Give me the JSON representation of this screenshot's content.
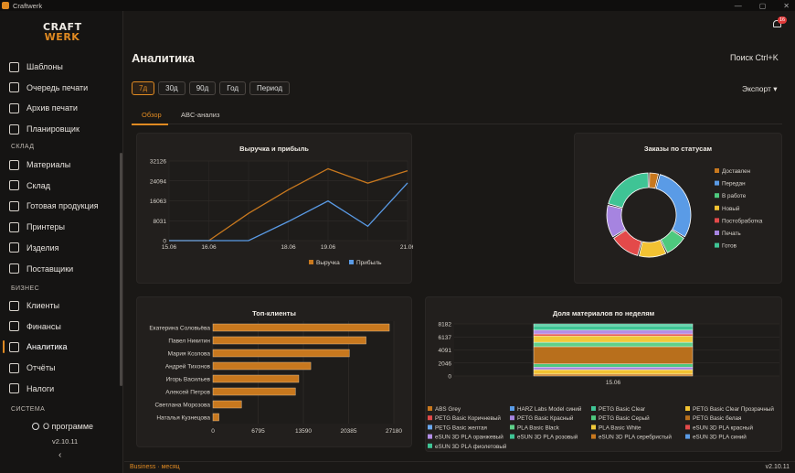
{
  "window": {
    "title": "Craftwerk",
    "controls": [
      "—",
      "▢",
      "✕"
    ]
  },
  "logo": {
    "line1": "CRAFT",
    "line2": "WERK"
  },
  "sidebar": {
    "items_top": [
      {
        "label": "Шаблоны",
        "icon": "layers-icon"
      },
      {
        "label": "Очередь печати",
        "icon": "printer-icon"
      },
      {
        "label": "Архив печати",
        "icon": "archive-icon"
      },
      {
        "label": "Планировщик",
        "icon": "calendar-icon"
      }
    ],
    "section_warehouse": "СКЛАД",
    "items_warehouse": [
      {
        "label": "Материалы",
        "icon": "cube-icon"
      },
      {
        "label": "Склад",
        "icon": "boxes-icon"
      },
      {
        "label": "Готовая продукция",
        "icon": "package-icon"
      },
      {
        "label": "Принтеры",
        "icon": "printer-icon"
      },
      {
        "label": "Изделия",
        "icon": "cube-icon"
      },
      {
        "label": "Поставщики",
        "icon": "truck-icon"
      }
    ],
    "section_business": "БИЗНЕС",
    "items_business": [
      {
        "label": "Клиенты",
        "icon": "user-icon"
      },
      {
        "label": "Финансы",
        "icon": "wallet-icon"
      },
      {
        "label": "Аналитика",
        "icon": "chart-icon",
        "active": true
      },
      {
        "label": "Отчёты",
        "icon": "document-icon"
      },
      {
        "label": "Налоги",
        "icon": "receipt-icon"
      }
    ],
    "section_system": "СИСТЕМА",
    "about": "О программе",
    "version": "v2.10.11",
    "collapse": "‹"
  },
  "notifications": {
    "count": "16"
  },
  "header": {
    "title": "Аналитика",
    "search_hint": "Поиск  Ctrl+K",
    "export": "Экспорт ▾"
  },
  "periods": [
    "7д",
    "30д",
    "90д",
    "Год",
    "Период"
  ],
  "tabs": [
    "Обзор",
    "ABC-анализ"
  ],
  "colors": {
    "accent": "#e08a22",
    "blue": "#5a9be6",
    "background": "#1a1816",
    "card": "#221f1d"
  },
  "chart_data": [
    {
      "type": "line",
      "title": "Выручка и прибыль",
      "x": [
        "15.06",
        "16.06",
        "17.06",
        "18.06",
        "19.06",
        "20.06",
        "21.06"
      ],
      "x_ticks": [
        "15.06",
        "16.06",
        "18.06",
        "19.06",
        "21.06"
      ],
      "ylim": [
        0,
        32126
      ],
      "y_ticks": [
        "0",
        "8031",
        "16063",
        "24094",
        "32126"
      ],
      "series": [
        {
          "name": "Выручка",
          "color": "#c8781e",
          "values": [
            0,
            0,
            11000,
            20500,
            29000,
            23200,
            28200
          ]
        },
        {
          "name": "Прибыль",
          "color": "#5a9be6",
          "values": [
            0,
            0,
            0,
            7700,
            16000,
            5800,
            23300
          ]
        }
      ],
      "legend": "bottom"
    },
    {
      "type": "pie",
      "title": "Заказы по статусам",
      "labels": [
        "Доставлен",
        "Передан",
        "В работе",
        "Новый",
        "Постобработка",
        "Печать",
        "Готов"
      ],
      "values": [
        4,
        30,
        9,
        11,
        12,
        13,
        21
      ],
      "colors": [
        "#c8781e",
        "#5a9be6",
        "#4ec97e",
        "#f2c232",
        "#e34a4a",
        "#a684e0",
        "#3fc495"
      ],
      "legend": "right"
    },
    {
      "type": "bar",
      "title": "Топ-клиенты",
      "orientation": "horizontal",
      "categories": [
        "Екатерина Соловьёва",
        "Павел Никитин",
        "Мария Козлова",
        "Андрей Тихонов",
        "Игорь Васильев",
        "Алексей Петров",
        "Светлана Морозова",
        "Наталья Кузнецова"
      ],
      "values": [
        26500,
        23000,
        20500,
        14700,
        12900,
        12400,
        4300,
        900
      ],
      "xlim": [
        0,
        27180
      ],
      "x_ticks": [
        "0",
        "6795",
        "13590",
        "20385",
        "27180"
      ],
      "color": "#c8781e"
    },
    {
      "type": "bar",
      "title": "Доля материалов по неделям",
      "stacked": true,
      "categories": [
        "15.06"
      ],
      "ylim": [
        0,
        8182
      ],
      "y_ticks": [
        "0",
        "2046",
        "4091",
        "6137",
        "8182"
      ],
      "series": [
        {
          "name": "ABS Grey",
          "color": "#c8781e",
          "values": [
            300
          ]
        },
        {
          "name": "HARZ Labs Model синий",
          "color": "#5a9be6",
          "values": [
            0
          ]
        },
        {
          "name": "PETG Basic Clear",
          "color": "#3fc495",
          "values": [
            0
          ]
        },
        {
          "name": "PETG Basic Clear Прозрачный",
          "color": "#f2c232",
          "values": [
            700
          ]
        },
        {
          "name": "PETG Basic Коричневый",
          "color": "#e34a4a",
          "values": [
            0
          ]
        },
        {
          "name": "PETG Basic Красный",
          "color": "#a684e0",
          "values": [
            400
          ]
        },
        {
          "name": "PETG Basic Серый",
          "color": "#4ec97e",
          "values": [
            500
          ]
        },
        {
          "name": "PETG Basic белая",
          "color": "#b86f1c",
          "values": [
            2700
          ]
        },
        {
          "name": "PETG Basic желтая",
          "color": "#6aa8f0",
          "values": [
            0
          ]
        },
        {
          "name": "PLA Basic Black",
          "color": "#5fd08a",
          "values": [
            700
          ]
        },
        {
          "name": "PLA Basic White",
          "color": "#f0c93a",
          "values": [
            1000
          ]
        },
        {
          "name": "eSUN 3D PLA красный",
          "color": "#e34a4a",
          "values": [
            300
          ]
        },
        {
          "name": "eSUN 3D PLA оранжевый",
          "color": "#b48ee8",
          "values": [
            600
          ]
        },
        {
          "name": "eSUN 3D PLA розовый",
          "color": "#3fc495",
          "values": [
            700
          ]
        },
        {
          "name": "eSUN 3D PLA серебристый",
          "color": "#c8781e",
          "values": [
            0
          ]
        },
        {
          "name": "eSUN 3D PLA синий",
          "color": "#5a9be6",
          "values": [
            0
          ]
        },
        {
          "name": "eSUN 3D PLA фиолетовый",
          "color": "#3fc495",
          "values": [
            280
          ]
        }
      ],
      "legend": "bottom"
    }
  ],
  "footer": {
    "profile": "Business · месяц",
    "version": "v2.10.11"
  }
}
